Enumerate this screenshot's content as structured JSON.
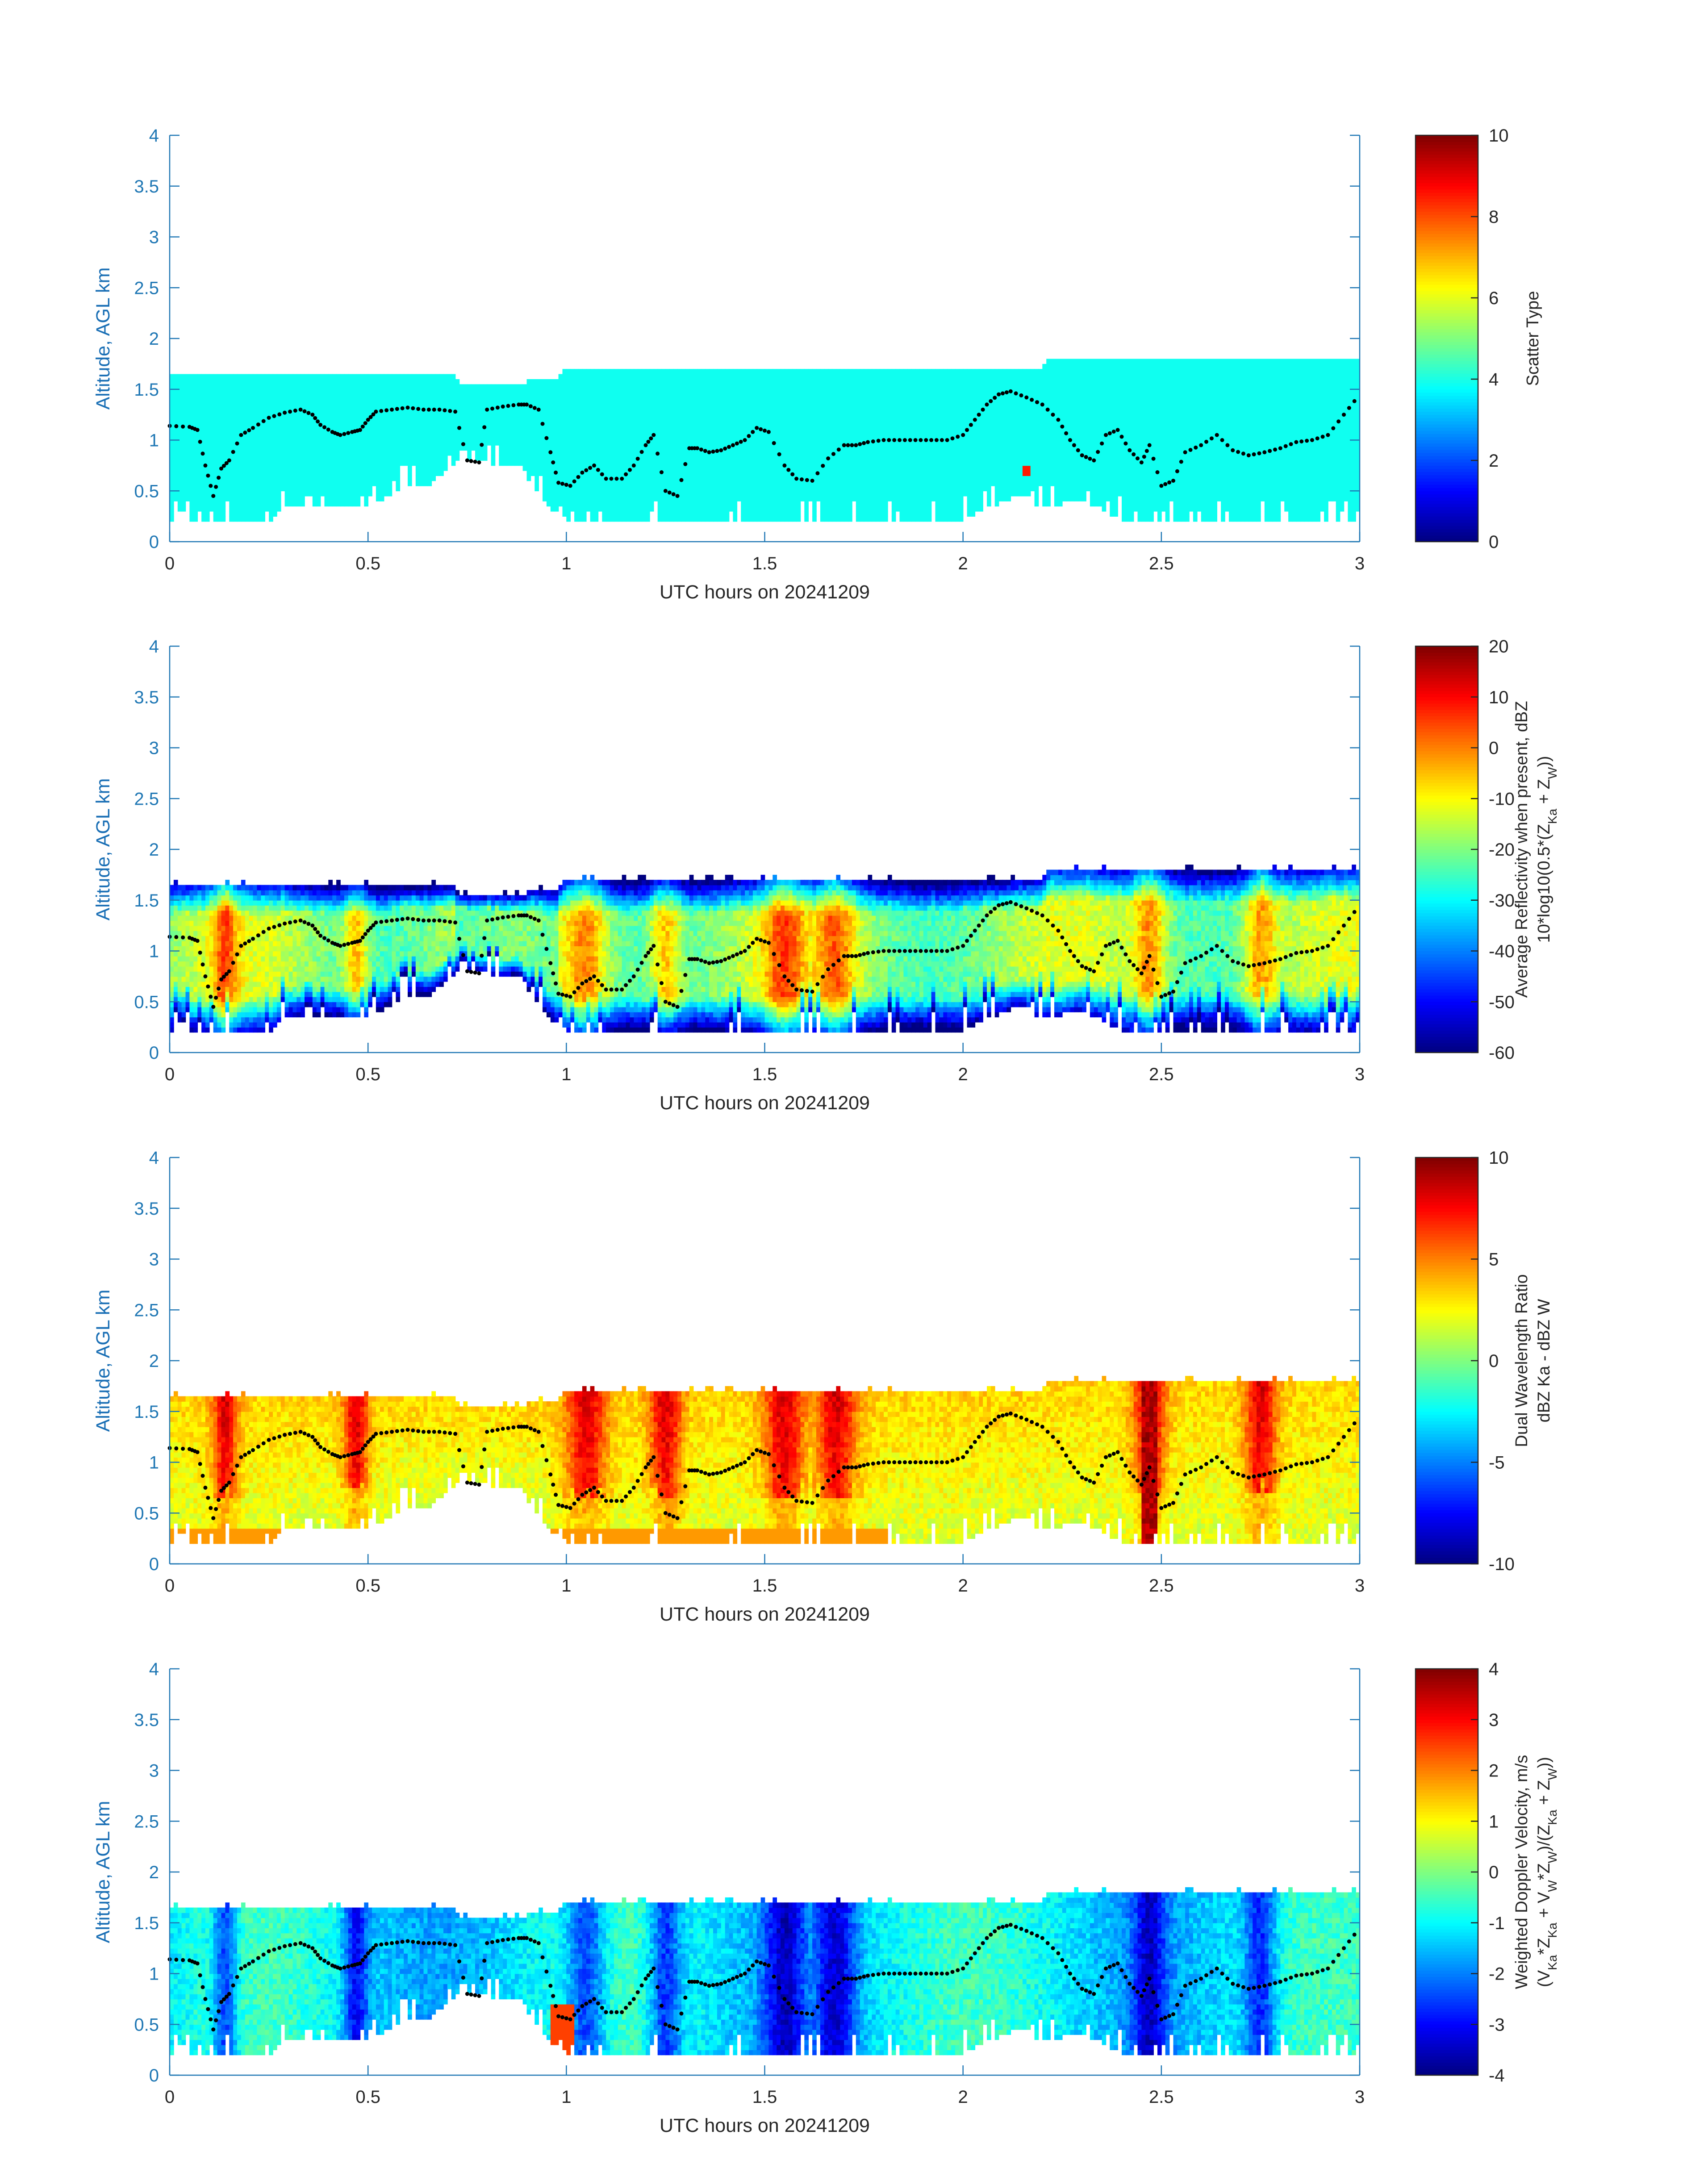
{
  "figure": {
    "background": "#ffffff",
    "axis_color": "#1f77b4",
    "axis_label_color": "#1a6fb5",
    "text_color": "#262626"
  },
  "chart_data": [
    {
      "type": "heatmap",
      "id": "scatter_type",
      "xlabel": "UTC hours on 20241209",
      "ylabel": "Altitude, AGL km",
      "xlim": [
        0,
        3
      ],
      "ylim": [
        0,
        4
      ],
      "xticks": [
        0,
        0.5,
        1,
        1.5,
        2,
        2.5,
        3
      ],
      "xtick_labels": [
        "0",
        "0.5",
        "1",
        "1.5",
        "2",
        "2.5",
        "3"
      ],
      "yticks": [
        0,
        0.5,
        1,
        1.5,
        2,
        2.5,
        3,
        3.5,
        4
      ],
      "ytick_labels": [
        "0",
        "0.5",
        "1",
        "1.5",
        "2",
        "2.5",
        "3",
        "3.5",
        "4"
      ],
      "colorbar": {
        "label_lines": [
          "Scatter Type"
        ],
        "range": [
          0,
          10
        ],
        "ticks": [
          0,
          2,
          4,
          6,
          8,
          10
        ],
        "tick_labels": [
          "0",
          "2",
          "4",
          "6",
          "8",
          "10"
        ],
        "colormap": "jet"
      },
      "field": "scatter",
      "typical_value": 3.9
    },
    {
      "type": "heatmap",
      "id": "reflectivity",
      "xlabel": "UTC hours on 20241209",
      "ylabel": "Altitude, AGL km",
      "xlim": [
        0,
        3
      ],
      "ylim": [
        0,
        4
      ],
      "xticks": [
        0,
        0.5,
        1,
        1.5,
        2,
        2.5,
        3
      ],
      "xtick_labels": [
        "0",
        "0.5",
        "1",
        "1.5",
        "2",
        "2.5",
        "3"
      ],
      "yticks": [
        0,
        0.5,
        1,
        1.5,
        2,
        2.5,
        3,
        3.5,
        4
      ],
      "ytick_labels": [
        "0",
        "0.5",
        "1",
        "1.5",
        "2",
        "2.5",
        "3",
        "3.5",
        "4"
      ],
      "colorbar": {
        "label_lines": [
          "Average Reflectivity when present, dBZ",
          "10*log10(0.5*(Z_Ka + Z_W))"
        ],
        "range": [
          -60,
          20
        ],
        "ticks": [
          -60,
          -50,
          -40,
          -30,
          -20,
          -10,
          0,
          10,
          20
        ],
        "tick_labels": [
          "-60",
          "-50",
          "-40",
          "-30",
          "-20",
          "-10",
          "0",
          "10",
          "20"
        ],
        "colormap": "jet"
      },
      "field": "reflectivity"
    },
    {
      "type": "heatmap",
      "id": "dwr",
      "xlabel": "UTC hours on 20241209",
      "ylabel": "Altitude, AGL km",
      "xlim": [
        0,
        3
      ],
      "ylim": [
        0,
        4
      ],
      "xticks": [
        0,
        0.5,
        1,
        1.5,
        2,
        2.5,
        3
      ],
      "xtick_labels": [
        "0",
        "0.5",
        "1",
        "1.5",
        "2",
        "2.5",
        "3"
      ],
      "yticks": [
        0,
        0.5,
        1,
        1.5,
        2,
        2.5,
        3,
        3.5,
        4
      ],
      "ytick_labels": [
        "0",
        "0.5",
        "1",
        "1.5",
        "2",
        "2.5",
        "3",
        "3.5",
        "4"
      ],
      "colorbar": {
        "label_lines": [
          "Dual Wavelength Ratio",
          "dBZ Ka - dBZ W"
        ],
        "range": [
          -10,
          10
        ],
        "ticks": [
          -10,
          -5,
          0,
          5,
          10
        ],
        "tick_labels": [
          "-10",
          "-5",
          "0",
          "5",
          "10"
        ],
        "colormap": "jet"
      },
      "field": "dwr"
    },
    {
      "type": "heatmap",
      "id": "doppler",
      "xlabel": "UTC hours on 20241209",
      "ylabel": "Altitude, AGL km",
      "xlim": [
        0,
        3
      ],
      "ylim": [
        0,
        4
      ],
      "xticks": [
        0,
        0.5,
        1,
        1.5,
        2,
        2.5,
        3
      ],
      "xtick_labels": [
        "0",
        "0.5",
        "1",
        "1.5",
        "2",
        "2.5",
        "3"
      ],
      "yticks": [
        0,
        0.5,
        1,
        1.5,
        2,
        2.5,
        3,
        3.5,
        4
      ],
      "ytick_labels": [
        "0",
        "0.5",
        "1",
        "1.5",
        "2",
        "2.5",
        "3",
        "3.5",
        "4"
      ],
      "colorbar": {
        "label_lines": [
          "Weighted Doppler Velocity, m/s",
          "(V_Ka*Z_Ka + V_W*Z_W)/(Z_Ka + Z_W))"
        ],
        "range": [
          -4,
          4
        ],
        "ticks": [
          -4,
          -3,
          -2,
          -1,
          0,
          1,
          2,
          3,
          4
        ],
        "tick_labels": [
          "-4",
          "-3",
          "-2",
          "-1",
          "0",
          "1",
          "2",
          "3",
          "4"
        ],
        "colormap": "jet"
      },
      "field": "doppler"
    }
  ],
  "cloud_base_km": 0.2,
  "cloud_top_profile": {
    "time_h": [
      0.0,
      0.3,
      0.31,
      0.72,
      0.73,
      0.9,
      0.91,
      0.98,
      0.99,
      2.2,
      2.21,
      3.0
    ],
    "top_km": [
      1.65,
      1.65,
      1.62,
      1.62,
      1.55,
      1.55,
      1.6,
      1.6,
      1.67,
      1.67,
      1.8,
      1.8
    ]
  },
  "cloud_bottom_profile": {
    "time_h": [
      0.0,
      0.26,
      0.3,
      0.5,
      0.6,
      0.66,
      0.7,
      0.73,
      0.8,
      0.84,
      0.88,
      0.92,
      0.96,
      1.0,
      1.2,
      1.8,
      2.0,
      2.15,
      2.2,
      2.3,
      2.4,
      2.6,
      3.0
    ],
    "bottom_km": [
      0.2,
      0.2,
      0.35,
      0.3,
      0.55,
      0.55,
      0.7,
      0.78,
      0.75,
      0.7,
      0.75,
      0.5,
      0.3,
      0.2,
      0.2,
      0.2,
      0.2,
      0.45,
      0.3,
      0.4,
      0.2,
      0.2,
      0.2
    ]
  },
  "dotted_line": {
    "time_h": [
      0.0,
      0.05,
      0.07,
      0.09,
      0.11,
      0.13,
      0.15,
      0.18,
      0.21,
      0.25,
      0.29,
      0.33,
      0.36,
      0.38,
      0.41,
      0.43,
      0.46,
      0.48,
      0.5,
      0.52,
      0.56,
      0.6,
      0.64,
      0.68,
      0.72,
      0.75,
      0.78,
      0.8,
      0.84,
      0.88,
      0.9,
      0.93,
      0.96,
      0.98,
      1.01,
      1.04,
      1.07,
      1.1,
      1.14,
      1.17,
      1.2,
      1.22,
      1.25,
      1.28,
      1.31,
      1.33,
      1.36,
      1.39,
      1.42,
      1.45,
      1.48,
      1.51,
      1.55,
      1.58,
      1.62,
      1.66,
      1.7,
      1.73,
      1.76,
      1.8,
      1.84,
      1.88,
      1.92,
      1.96,
      2.0,
      2.03,
      2.06,
      2.09,
      2.12,
      2.16,
      2.2,
      2.24,
      2.27,
      2.3,
      2.33,
      2.36,
      2.39,
      2.42,
      2.45,
      2.47,
      2.5,
      2.53,
      2.56,
      2.6,
      2.64,
      2.68,
      2.72,
      2.76,
      2.8,
      2.84,
      2.88,
      2.92,
      2.96,
      3.0
    ],
    "alt_km": [
      1.14,
      1.13,
      1.1,
      0.75,
      0.45,
      0.72,
      0.8,
      1.05,
      1.12,
      1.22,
      1.27,
      1.3,
      1.25,
      1.15,
      1.08,
      1.05,
      1.08,
      1.1,
      1.2,
      1.28,
      1.3,
      1.32,
      1.3,
      1.3,
      1.28,
      0.8,
      0.78,
      1.3,
      1.33,
      1.35,
      1.35,
      1.3,
      0.88,
      0.58,
      0.55,
      0.68,
      0.75,
      0.62,
      0.62,
      0.75,
      0.95,
      1.05,
      0.5,
      0.45,
      0.92,
      0.92,
      0.88,
      0.9,
      0.95,
      1.0,
      1.12,
      1.08,
      0.75,
      0.62,
      0.6,
      0.82,
      0.95,
      0.95,
      0.98,
      1.0,
      1.0,
      1.0,
      1.0,
      1.0,
      1.05,
      1.2,
      1.35,
      1.45,
      1.48,
      1.42,
      1.35,
      1.2,
      1.0,
      0.85,
      0.8,
      1.05,
      1.1,
      0.9,
      0.78,
      0.95,
      0.55,
      0.6,
      0.88,
      0.95,
      1.05,
      0.9,
      0.85,
      0.88,
      0.92,
      0.98,
      1.0,
      1.05,
      1.25,
      1.45
    ]
  }
}
